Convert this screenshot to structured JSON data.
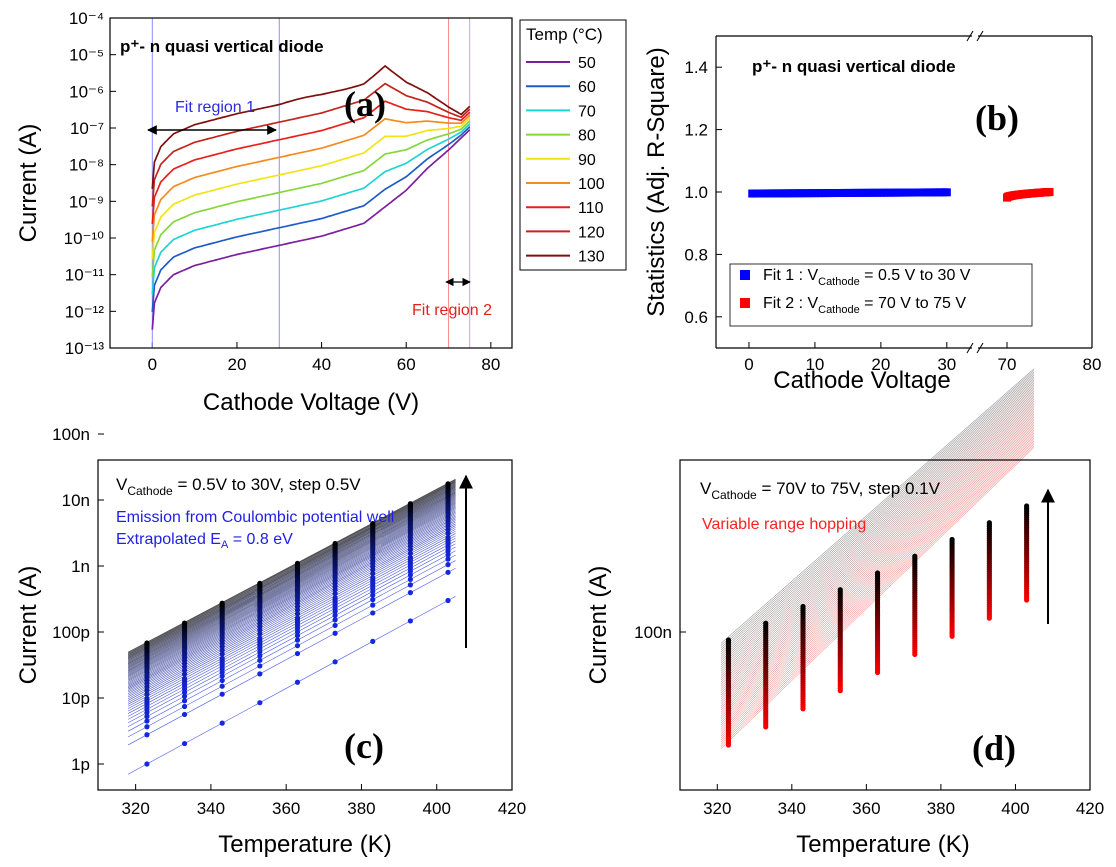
{
  "chart_data": [
    {
      "panel": "(a)",
      "type": "line",
      "annotation_title": "p⁺- n quasi vertical diode",
      "xlabel": "Cathode Voltage (V)",
      "ylabel": "Current (A)",
      "xlim": [
        -10,
        85
      ],
      "ylim_log10": [
        -13,
        -4
      ],
      "xticks": [
        "0",
        "20",
        "40",
        "60",
        "80"
      ],
      "yticks": [
        "10⁻¹³",
        "10⁻¹²",
        "10⁻¹¹",
        "10⁻¹⁰",
        "10⁻⁹",
        "10⁻⁸",
        "10⁻⁷",
        "10⁻⁶",
        "10⁻⁵",
        "10⁻⁴"
      ],
      "legend_title": "Temp (°C)",
      "series": [
        {
          "name": "50",
          "color": "#7b1fa2"
        },
        {
          "name": "60",
          "color": "#1e5cc8"
        },
        {
          "name": "70",
          "color": "#22d3d3"
        },
        {
          "name": "80",
          "color": "#86d63c"
        },
        {
          "name": "90",
          "color": "#f2e412"
        },
        {
          "name": "100",
          "color": "#f58a1e"
        },
        {
          "name": "110",
          "color": "#e8201c"
        },
        {
          "name": "120",
          "color": "#c0261e"
        },
        {
          "name": "130",
          "color": "#7e0f0f"
        }
      ],
      "curve_shape_log10": {
        "x": [
          0,
          0.4,
          2,
          5,
          10,
          20,
          30,
          40,
          50,
          60,
          65,
          70,
          75
        ],
        "base_50C": [
          -12.5,
          -11.8,
          -11.35,
          -11.0,
          -10.75,
          -10.45,
          -10.2,
          -9.95,
          -9.6,
          -8.7,
          -8.1,
          -7.6,
          -7.05
        ],
        "step_per_10C_low_V": 0.48,
        "step_per_10C_high_V": 0.08
      },
      "fit_region_1": {
        "label": "Fit region 1",
        "x_range": [
          0,
          30
        ]
      },
      "fit_region_2": {
        "label": "Fit region 2",
        "x_range": [
          70,
          75
        ]
      }
    },
    {
      "panel": "(b)",
      "type": "scatter",
      "annotation_title": "p⁺- n quasi vertical diode",
      "xlabel": "Cathode Voltage",
      "ylabel": "Statistics (Adj. R-Square)",
      "ylim": [
        0.5,
        1.5
      ],
      "xticks": [
        "0",
        "10",
        "20",
        "30",
        "70",
        "80"
      ],
      "yticks": [
        "0.6",
        "0.8",
        "1.0",
        "1.2",
        "1.4"
      ],
      "broken_x_axis": {
        "segment_1": [
          -5,
          32
        ],
        "segment_2": [
          68,
          80
        ]
      },
      "series": [
        {
          "name": "Fit 1 : V",
          "subscript": "Cathode",
          "suffix": " = 0.5 V to 30 V",
          "color": "#0000ff",
          "x_range": [
            0.5,
            30
          ],
          "y": 0.995
        },
        {
          "name": "Fit 2 : V",
          "subscript": "Cathode",
          "suffix": " = 70 V to 75 V",
          "color": "#ff0000",
          "x_range": [
            70,
            75
          ],
          "y_start": 0.982,
          "y_end": 1.0
        }
      ]
    },
    {
      "panel": "(c)",
      "type": "scatter",
      "xlabel": "Temperature (K)",
      "ylabel": "Current (A)",
      "xlim": [
        310,
        420
      ],
      "xticks": [
        "320",
        "340",
        "360",
        "380",
        "400",
        "420"
      ],
      "yticks": [
        "1p",
        "10p",
        "100p",
        "1n",
        "10n",
        "100n"
      ],
      "temperatures_K": [
        323,
        333,
        343,
        353,
        363,
        373,
        383,
        393,
        403
      ],
      "header_prefix": "V",
      "header_subscript": "Cathode",
      "header_suffix": " = 0.5V to 30V, step 0.5V",
      "note_line_1": "Emission from Coulombic potential well",
      "note_line_2_prefix": "Extrapolated E",
      "note_line_2_subscript": "A",
      "note_line_2_suffix": " = 0.8 eV",
      "low_voltage_current_at_323K": "1p",
      "high_voltage_current_at_323K": "70p",
      "low_voltage_current_at_403K": "300p",
      "high_voltage_current_at_403K": "18n",
      "color_low_voltage": "#1428e6",
      "color_high_voltage": "#000000"
    },
    {
      "panel": "(d)",
      "type": "scatter",
      "xlabel": "Temperature (K)",
      "ylabel": "Current (A)",
      "xlim": [
        310,
        420
      ],
      "xticks": [
        "320",
        "340",
        "360",
        "380",
        "400",
        "420"
      ],
      "yticks": [
        "100n"
      ],
      "temperatures_K": [
        323,
        333,
        343,
        353,
        363,
        373,
        383,
        393,
        403
      ],
      "header_prefix": "V",
      "header_subscript": "Cathode",
      "header_suffix": " = 70V to 75V, step 0.1V",
      "note_line_1": "Variable range hopping",
      "color_low_voltage": "#ff0000",
      "color_high_voltage": "#000000"
    }
  ]
}
